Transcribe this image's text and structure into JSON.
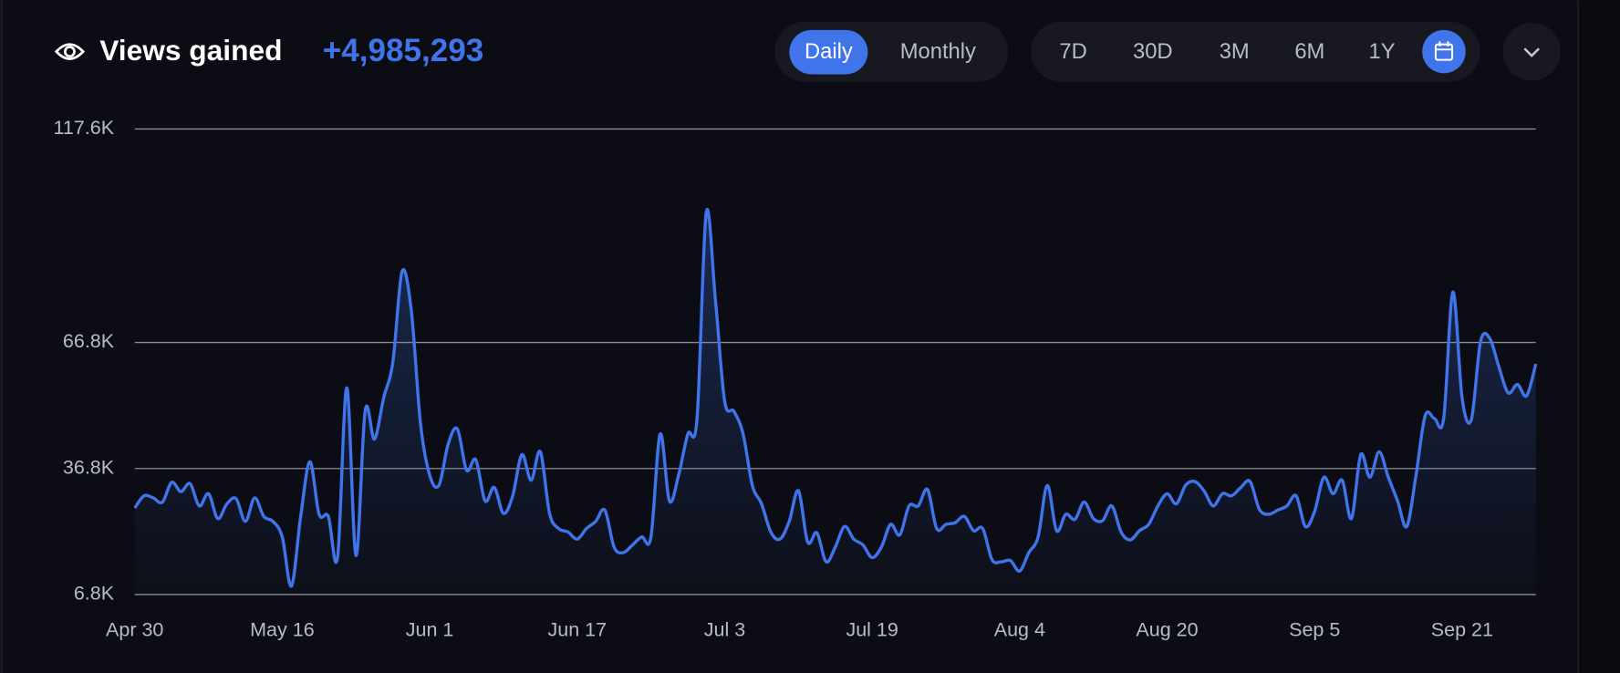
{
  "header": {
    "title": "Views gained",
    "total": "+4,985,293"
  },
  "toggles": {
    "interval": [
      "Daily",
      "Monthly"
    ],
    "active_interval": "Daily",
    "ranges": [
      "7D",
      "30D",
      "3M",
      "6M",
      "1Y"
    ]
  },
  "chart_data": {
    "type": "line",
    "categories": [
      "Apr 30",
      null,
      null,
      null,
      null,
      null,
      null,
      null,
      null,
      null,
      null,
      null,
      null,
      null,
      null,
      null,
      "May 16",
      null,
      null,
      null,
      null,
      null,
      null,
      null,
      null,
      null,
      null,
      null,
      null,
      null,
      null,
      null,
      "Jun 1",
      null,
      null,
      null,
      null,
      null,
      null,
      null,
      null,
      null,
      null,
      null,
      null,
      null,
      null,
      null,
      "Jun 17",
      null,
      null,
      null,
      null,
      null,
      null,
      null,
      null,
      null,
      null,
      null,
      null,
      null,
      null,
      null,
      "Jul 3",
      null,
      null,
      null,
      null,
      null,
      null,
      null,
      null,
      null,
      null,
      null,
      null,
      null,
      null,
      null,
      "Jul 19",
      null,
      null,
      null,
      null,
      null,
      null,
      null,
      null,
      null,
      null,
      null,
      null,
      null,
      null,
      null,
      "Aug 4",
      null,
      null,
      null,
      null,
      null,
      null,
      null,
      null,
      null,
      null,
      null,
      null,
      null,
      null,
      null,
      "Aug 20",
      null,
      null,
      null,
      null,
      null,
      null,
      null,
      null,
      null,
      null,
      null,
      null,
      null,
      null,
      null,
      "Sep 5",
      null,
      null,
      null,
      null,
      null,
      null,
      null,
      null,
      null,
      null,
      null,
      null,
      null,
      null,
      null,
      "Sep 21",
      null,
      null,
      null,
      null,
      null,
      null,
      null,
      null
    ],
    "values": [
      27400,
      30300,
      29800,
      28800,
      33500,
      31300,
      33200,
      27900,
      30800,
      24900,
      28400,
      29600,
      24200,
      29800,
      25400,
      24200,
      20500,
      8800,
      25400,
      38400,
      25900,
      25400,
      15600,
      56000,
      16100,
      50600,
      43800,
      53600,
      62100,
      83700,
      74400,
      47500,
      35200,
      32800,
      42600,
      46200,
      36400,
      38900,
      29100,
      32300,
      26100,
      30300,
      40100,
      34000,
      40800,
      26100,
      22500,
      21700,
      20000,
      22500,
      24200,
      26900,
      18100,
      16800,
      18600,
      20500,
      20500,
      45000,
      29100,
      35200,
      45000,
      48700,
      97700,
      76800,
      52800,
      50400,
      45000,
      32800,
      28400,
      21700,
      20000,
      24200,
      31500,
      19300,
      21500,
      14600,
      18100,
      23000,
      20000,
      18600,
      15600,
      18100,
      23500,
      21000,
      27900,
      27900,
      31800,
      22500,
      23500,
      23900,
      25400,
      22000,
      22500,
      15100,
      14600,
      14900,
      12400,
      16800,
      20500,
      32800,
      22000,
      25900,
      24700,
      28800,
      24900,
      24400,
      27900,
      21700,
      19800,
      22000,
      23500,
      27900,
      30800,
      28400,
      32800,
      33700,
      31500,
      27900,
      30800,
      30300,
      32300,
      33700,
      27100,
      25900,
      26900,
      27900,
      30300,
      23000,
      26600,
      34700,
      30800,
      34000,
      24900,
      40100,
      34700,
      40800,
      34700,
      29100,
      23000,
      35200,
      49400,
      48700,
      48700,
      78800,
      53600,
      48400,
      67000,
      67800,
      60900,
      54800,
      56800,
      54100,
      61700
    ],
    "color": "#3f74ea",
    "ylim": [
      6800,
      117600
    ],
    "yticks": [
      {
        "value": 6800,
        "label": "6.8K"
      },
      {
        "value": 36800,
        "label": "36.8K"
      },
      {
        "value": 66800,
        "label": "66.8K"
      },
      {
        "value": 117600,
        "label": "117.6K"
      }
    ],
    "grid": true
  }
}
